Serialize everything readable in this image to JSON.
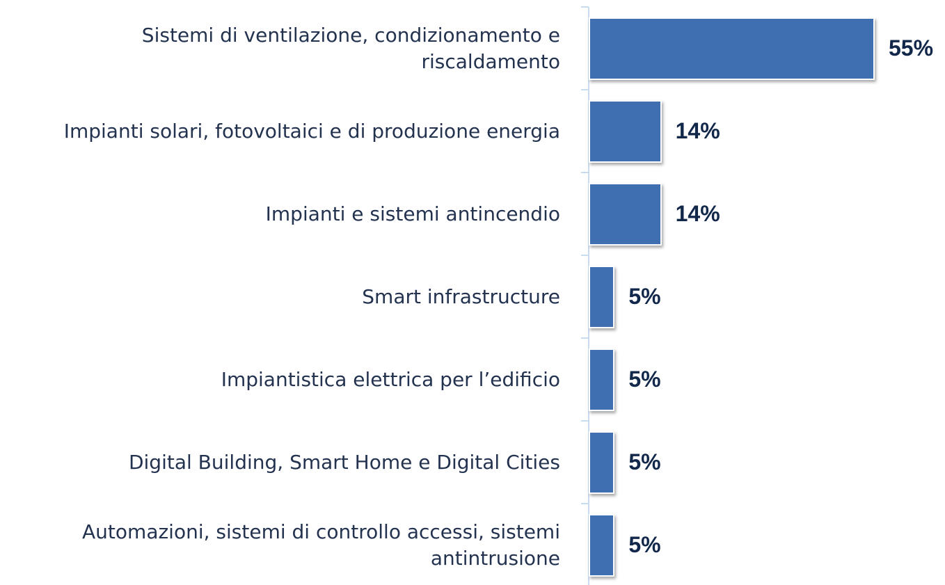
{
  "chart_data": {
    "type": "bar",
    "orientation": "horizontal",
    "categories": [
      "Sistemi di ventilazione, condizionamento e riscaldamento",
      "Impianti solari, fotovoltaici e di produzione energia",
      "Impianti e sistemi antincendio",
      "Smart infrastructure",
      "Impiantistica elettrica per l’edificio",
      "Digital Building, Smart Home e Digital Cities",
      "Automazioni, sistemi di controllo accessi, sistemi antintrusione"
    ],
    "values": [
      55,
      14,
      14,
      5,
      5,
      5,
      5
    ],
    "value_labels": [
      "55%",
      "14%",
      "14%",
      "5%",
      "5%",
      "5%",
      "5%"
    ],
    "color": "#3f6fb0"
  }
}
